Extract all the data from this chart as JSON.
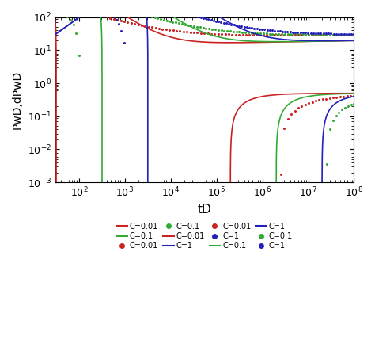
{
  "xlabel": "tD",
  "ylabel": "PwD,dPwD",
  "xlim_low": 30,
  "xlim_high": 100000000.0,
  "ylim_low": 0.001,
  "ylim_high": 100.0,
  "colors": {
    "red": "#cc2222",
    "green": "#33aa33",
    "blue": "#2222bb"
  },
  "C_values": [
    0.01,
    0.1,
    1.0
  ],
  "S_solid": 10,
  "S_dot": 20,
  "n_solid": 3000,
  "n_dot": 100,
  "tD_start_solid": 30,
  "tD_end": 100000000.0,
  "legend_solid": [
    {
      "color": "red",
      "label": "C=0.01"
    },
    {
      "color": "red",
      "label": "C=0.01"
    },
    {
      "color": "green",
      "label": "C=0.1"
    },
    {
      "color": "green",
      "label": "C=0.1"
    },
    {
      "color": "green",
      "label": "C=0.1"
    },
    {
      "color": "blue",
      "label": "C=1"
    },
    {
      "color": "blue",
      "label": "C=1"
    }
  ],
  "legend_dot": [
    {
      "color": "red",
      "label": "C=0.01"
    },
    {
      "color": "red",
      "label": "C=0.01"
    },
    {
      "color": "green",
      "label": "C=0.1"
    },
    {
      "color": "green",
      "label": "C=0.1"
    },
    {
      "color": "blue",
      "label": "C=1"
    },
    {
      "color": "blue",
      "label": "C=1"
    }
  ]
}
